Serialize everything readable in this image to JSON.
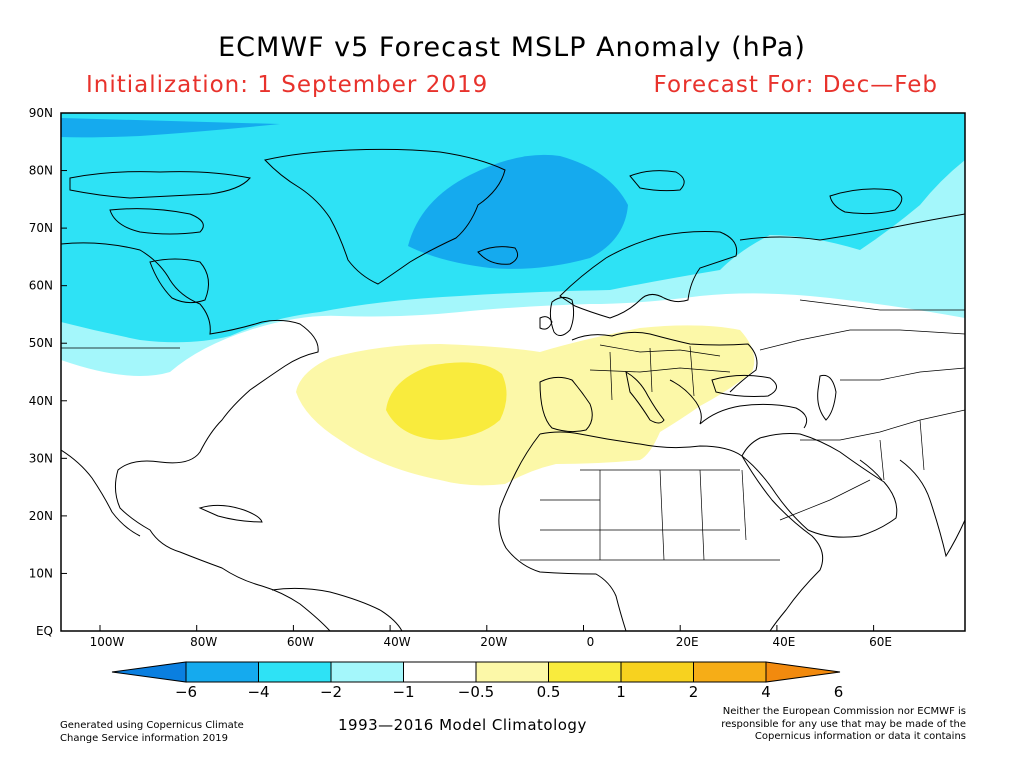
{
  "title": "ECMWF v5 Forecast MSLP Anomaly (hPa)",
  "initialization": "Initialization: 1 September 2019",
  "forecast_for": "Forecast For: Dec—Feb",
  "lat_labels": [
    "90N",
    "80N",
    "70N",
    "60N",
    "50N",
    "40N",
    "30N",
    "20N",
    "10N",
    "EQ"
  ],
  "lon_labels": [
    "100W",
    "80W",
    "60W",
    "40W",
    "20W",
    "0",
    "20E",
    "40E",
    "60E"
  ],
  "colorbar": {
    "labels": [
      "−6",
      "−4",
      "−2",
      "−1",
      "−0.5",
      "0.5",
      "1",
      "2",
      "4",
      "6"
    ],
    "colors": [
      "#0a7fe0",
      "#15aaee",
      "#2ee2f5",
      "#a4f7fb",
      "#ffffff",
      "#fcf8a8",
      "#f9eb3d",
      "#f7d21f",
      "#f6ad17",
      "#f28a0e"
    ]
  },
  "footer": {
    "left_line1": "Generated using Copernicus Climate",
    "left_line2": "Change Service information 2019",
    "center": "1993—2016 Model Climatology",
    "right_line1": "Neither the European Commission nor ECMWF is",
    "right_line2": "responsible for any use that may be made of the",
    "right_line3": "Copernicus information or data it contains"
  }
}
